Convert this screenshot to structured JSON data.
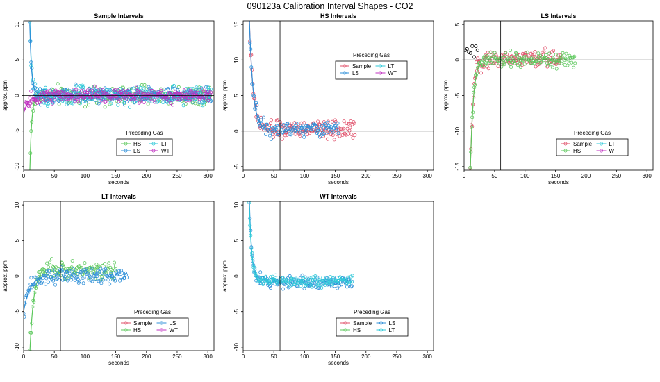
{
  "page_title": "090123a   Calibration Interval Shapes - CO2",
  "colors": {
    "Sample": "#e0506a",
    "HS": "#5cc85c",
    "LS": "#2e8fd8",
    "LT": "#2ec8d8",
    "WT": "#c030c0"
  },
  "chart_data": [
    {
      "id": "sample",
      "type": "scatter",
      "title": "Sample Intervals",
      "xlabel": "seconds",
      "ylabel": "approx. ppm",
      "xlim": [
        0,
        310
      ],
      "ylim": [
        -10.5,
        10.5
      ],
      "xticks": [
        0,
        50,
        100,
        150,
        200,
        250,
        300
      ],
      "yticks": [
        -10,
        -5,
        0,
        5,
        10
      ],
      "hline": 0,
      "vline": null,
      "legend_title": "Preceding Gas",
      "legend_position": "center-bottom",
      "legend": [
        "HS",
        "LT",
        "LS",
        "WT"
      ],
      "series": [
        {
          "name": "HS",
          "x_range": [
            10,
            305
          ],
          "start": -11,
          "decay": 3,
          "plateau": 0,
          "noise": 0.9
        },
        {
          "name": "LT",
          "x_range": [
            10,
            305
          ],
          "start": 11,
          "decay": 3,
          "plateau": 0,
          "noise": 0.9
        },
        {
          "name": "LS",
          "x_range": [
            10,
            305
          ],
          "start": 10,
          "decay": 3,
          "plateau": 0,
          "noise": 0.8
        },
        {
          "name": "WT",
          "x_range": [
            0,
            305
          ],
          "start": -2.5,
          "decay": 8,
          "plateau": 0,
          "noise": 0.7
        }
      ]
    },
    {
      "id": "hs",
      "type": "scatter",
      "title": "HS Intervals",
      "xlabel": "seconds",
      "ylabel": "approx. ppm",
      "xlim": [
        0,
        310
      ],
      "ylim": [
        -5.5,
        15.5
      ],
      "xticks": [
        0,
        50,
        100,
        150,
        200,
        250,
        300
      ],
      "yticks": [
        -5,
        0,
        5,
        10,
        15
      ],
      "hline": 0,
      "vline": 60,
      "legend_title": "Preceding Gas",
      "legend_position": "top-center",
      "legend": [
        "Sample",
        "LT",
        "LS",
        "WT"
      ],
      "series": [
        {
          "name": "Sample",
          "x_range": [
            10,
            182
          ],
          "start": 16,
          "decay": 6,
          "plateau": 0.2,
          "noise": 0.9
        },
        {
          "name": "LS",
          "x_range": [
            10,
            155
          ],
          "start": 16,
          "decay": 6,
          "plateau": 0.3,
          "noise": 0.8
        }
      ]
    },
    {
      "id": "ls",
      "type": "scatter",
      "title": "LS Intervals",
      "xlabel": "seconds",
      "ylabel": "approx. ppm",
      "xlim": [
        0,
        310
      ],
      "ylim": [
        -15.5,
        5.5
      ],
      "xticks": [
        0,
        50,
        100,
        150,
        200,
        250,
        300
      ],
      "yticks": [
        -15,
        -10,
        -5,
        0,
        5
      ],
      "hline": 0,
      "vline": 60,
      "legend_title": "Preceding Gas",
      "legend_position": "center-right",
      "legend": [
        "Sample",
        "LT",
        "HS",
        "WT"
      ],
      "series": [
        {
          "name": "Sample",
          "x_range": [
            10,
            160
          ],
          "start": -16,
          "decay": 5,
          "plateau": 0.2,
          "noise": 0.9
        },
        {
          "name": "HS",
          "x_range": [
            10,
            182
          ],
          "start": -16,
          "decay": 5,
          "plateau": 0,
          "noise": 0.8
        },
        {
          "name": "outlier",
          "x_range": [
            2,
            22
          ],
          "start": 1.3,
          "decay": 1000,
          "plateau": 1.3,
          "noise": 0.5,
          "count": 8
        }
      ]
    },
    {
      "id": "lt",
      "type": "scatter",
      "title": "LT Intervals",
      "xlabel": "seconds",
      "ylabel": "approx. ppm",
      "xlim": [
        0,
        310
      ],
      "ylim": [
        -10.5,
        10.5
      ],
      "xticks": [
        0,
        50,
        100,
        150,
        200,
        250,
        300
      ],
      "yticks": [
        -10,
        -5,
        0,
        5,
        10
      ],
      "hline": 0,
      "vline": 60,
      "legend_title": "Preceding Gas",
      "legend_position": "center-bottom",
      "legend": [
        "Sample",
        "LS",
        "HS",
        "WT"
      ],
      "series": [
        {
          "name": "HS",
          "x_range": [
            10,
            150
          ],
          "start": -11,
          "decay": 6,
          "plateau": 0.8,
          "noise": 0.8
        },
        {
          "name": "LS",
          "x_range": [
            0,
            168
          ],
          "start": -5,
          "decay": 10,
          "plateau": 0,
          "noise": 0.8
        }
      ]
    },
    {
      "id": "wt",
      "type": "scatter",
      "title": "WT Intervals",
      "xlabel": "seconds",
      "ylabel": "approx. ppm",
      "xlim": [
        0,
        310
      ],
      "ylim": [
        -10.5,
        10.5
      ],
      "xticks": [
        0,
        50,
        100,
        150,
        200,
        250,
        300
      ],
      "yticks": [
        -10,
        -5,
        0,
        5,
        10
      ],
      "hline": 0,
      "vline": 60,
      "legend_title": "Preceding Gas",
      "legend_position": "center-bottom",
      "legend": [
        "Sample",
        "LS",
        "HS",
        "LT"
      ],
      "series": [
        {
          "name": "LS",
          "x_range": [
            10,
            178
          ],
          "start": 11,
          "decay": 4,
          "plateau": -0.8,
          "noise": 0.6
        },
        {
          "name": "LT",
          "x_range": [
            10,
            178
          ],
          "start": 10,
          "decay": 4,
          "plateau": -0.7,
          "noise": 0.5
        }
      ]
    }
  ]
}
